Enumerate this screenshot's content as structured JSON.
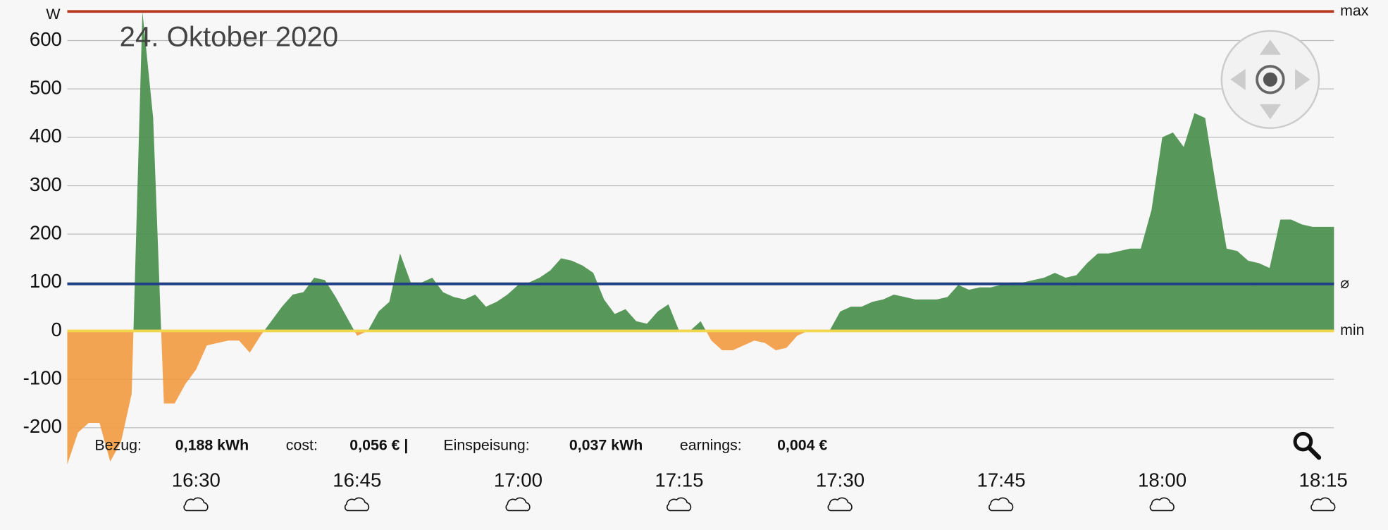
{
  "chart_data": {
    "type": "area",
    "title": "24. Oktober 2020",
    "y_unit": "W",
    "x": [
      "16:18",
      "16:19",
      "16:20",
      "16:21",
      "16:22",
      "16:23",
      "16:24",
      "16:25",
      "16:26",
      "16:27",
      "16:28",
      "16:29",
      "16:30",
      "16:31",
      "16:32",
      "16:33",
      "16:34",
      "16:35",
      "16:36",
      "16:37",
      "16:38",
      "16:39",
      "16:40",
      "16:41",
      "16:42",
      "16:43",
      "16:44",
      "16:45",
      "16:46",
      "16:47",
      "16:48",
      "16:49",
      "16:50",
      "16:51",
      "16:52",
      "16:53",
      "16:54",
      "16:55",
      "16:56",
      "16:57",
      "16:58",
      "16:59",
      "17:00",
      "17:01",
      "17:02",
      "17:03",
      "17:04",
      "17:05",
      "17:06",
      "17:07",
      "17:08",
      "17:09",
      "17:10",
      "17:11",
      "17:12",
      "17:13",
      "17:14",
      "17:15",
      "17:16",
      "17:17",
      "17:18",
      "17:19",
      "17:20",
      "17:21",
      "17:22",
      "17:23",
      "17:24",
      "17:25",
      "17:26",
      "17:27",
      "17:28",
      "17:29",
      "17:30",
      "17:31",
      "17:32",
      "17:33",
      "17:34",
      "17:35",
      "17:36",
      "17:37",
      "17:38",
      "17:39",
      "17:40",
      "17:41",
      "17:42",
      "17:43",
      "17:44",
      "17:45",
      "17:46",
      "17:47",
      "17:48",
      "17:49",
      "17:50",
      "17:51",
      "17:52",
      "17:53",
      "17:54",
      "17:55",
      "17:56",
      "17:57",
      "17:58",
      "17:59",
      "18:00",
      "18:01",
      "18:02",
      "18:03",
      "18:04",
      "18:05",
      "18:06",
      "18:07",
      "18:08",
      "18:09",
      "18:10",
      "18:11",
      "18:12",
      "18:13",
      "18:14",
      "18:15",
      "18:16"
    ],
    "values": [
      -276,
      -210,
      -190,
      -190,
      -270,
      -230,
      -130,
      660,
      440,
      -150,
      -150,
      -110,
      -80,
      -30,
      -25,
      -20,
      -20,
      -45,
      -10,
      20,
      50,
      75,
      80,
      110,
      105,
      70,
      30,
      -10,
      0,
      40,
      60,
      160,
      100,
      100,
      110,
      80,
      70,
      65,
      75,
      50,
      60,
      75,
      95,
      100,
      110,
      125,
      150,
      145,
      135,
      120,
      65,
      35,
      45,
      20,
      15,
      40,
      55,
      0,
      0,
      20,
      -20,
      -40,
      -40,
      -30,
      -20,
      -25,
      -40,
      -35,
      -10,
      0,
      0,
      0,
      40,
      50,
      50,
      60,
      65,
      75,
      70,
      65,
      65,
      65,
      70,
      95,
      85,
      90,
      90,
      95,
      100,
      100,
      105,
      110,
      120,
      110,
      115,
      140,
      160,
      160,
      165,
      170,
      170,
      250,
      400,
      410,
      380,
      450,
      440,
      300,
      170,
      165,
      145,
      140,
      130,
      230,
      230,
      220,
      215,
      215,
      215
    ],
    "positive_color": "#4a8f4c",
    "negative_color": "#f29d45",
    "xlim": [
      "16:18",
      "18:16"
    ],
    "xticks": [
      "16:30",
      "16:45",
      "17:00",
      "17:15",
      "17:30",
      "17:45",
      "18:00",
      "18:15"
    ],
    "ylim": [
      -280,
      660
    ],
    "yticks": [
      -200,
      -100,
      0,
      100,
      200,
      300,
      400,
      500,
      600
    ],
    "grid": true,
    "reference_lines": [
      {
        "label": "max",
        "value": 660,
        "color": "#b5381f"
      },
      {
        "label": "⌀",
        "value": 97,
        "color": "#1f3f87"
      },
      {
        "label": "min",
        "value": 0,
        "color": "#f2d64b"
      }
    ],
    "stats": [
      {
        "label": "Bezug:",
        "value": "0,188 kWh"
      },
      {
        "label": "cost:",
        "value": "0,056 € |"
      },
      {
        "label": "Einspeisung:",
        "value": "0,037 kWh"
      },
      {
        "label": "earnings:",
        "value": "0,004 €"
      }
    ]
  }
}
